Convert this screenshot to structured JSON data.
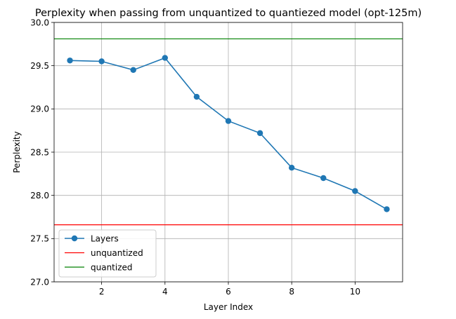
{
  "chart_data": {
    "type": "line",
    "title": "Perplexity when passing from unquantized to quantiezed model (opt-125m)",
    "xlabel": "Layer Index",
    "ylabel": "Perplexity",
    "xlim": [
      0.5,
      11.5
    ],
    "ylim": [
      27.0,
      30.0
    ],
    "xticks": [
      2,
      4,
      6,
      8,
      10
    ],
    "yticks": [
      27.0,
      27.5,
      28.0,
      28.5,
      29.0,
      29.5,
      30.0
    ],
    "xtick_labels": [
      "2",
      "4",
      "6",
      "8",
      "10"
    ],
    "ytick_labels": [
      "27.0",
      "27.5",
      "28.0",
      "28.5",
      "29.0",
      "29.5",
      "30.0"
    ],
    "grid": true,
    "legend_position": "lower-left",
    "series": [
      {
        "name": "Layers",
        "color": "#1f77b4",
        "marker": "circle",
        "x": [
          1,
          2,
          3,
          4,
          5,
          6,
          7,
          8,
          9,
          10,
          11
        ],
        "y": [
          29.56,
          29.55,
          29.45,
          29.59,
          29.14,
          28.86,
          28.72,
          28.32,
          28.2,
          28.05,
          27.84
        ]
      }
    ],
    "hlines": [
      {
        "name": "unquantized",
        "y": 27.66,
        "color": "#ff0000"
      },
      {
        "name": "quantized",
        "y": 29.81,
        "color": "#008000"
      }
    ]
  }
}
